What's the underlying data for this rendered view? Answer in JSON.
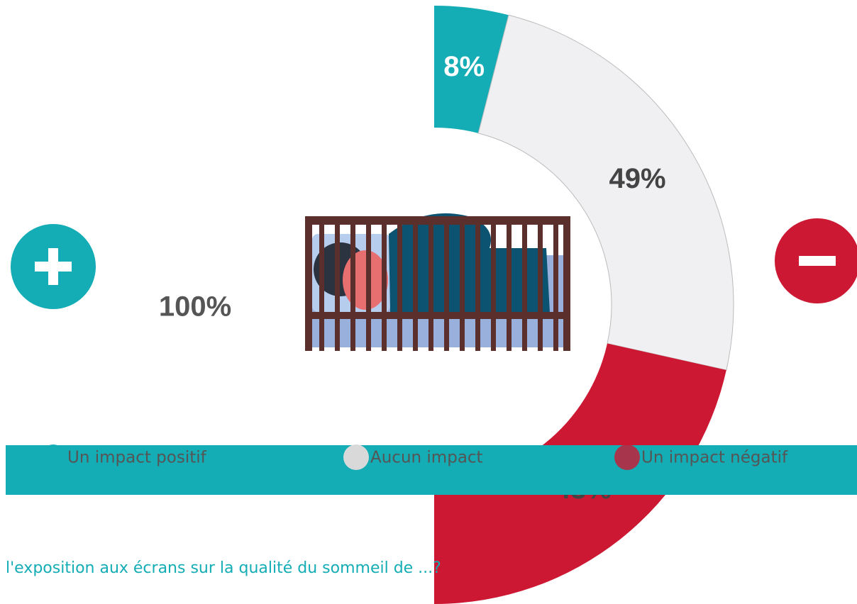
{
  "chart_data": {
    "type": "pie",
    "categories": [
      "Un impact positif",
      "Aucun impact",
      "Un impact négatif"
    ],
    "values": [
      8,
      49,
      43
    ],
    "value_labels": [
      "8%",
      "49%",
      "43%"
    ],
    "colors": [
      "#14adb5",
      "#f0f0f2",
      "#cc1833"
    ],
    "center_label": "100%"
  },
  "page": {
    "question": "l'exposition aux écrans sur la qualité du sommeil de ...?"
  }
}
